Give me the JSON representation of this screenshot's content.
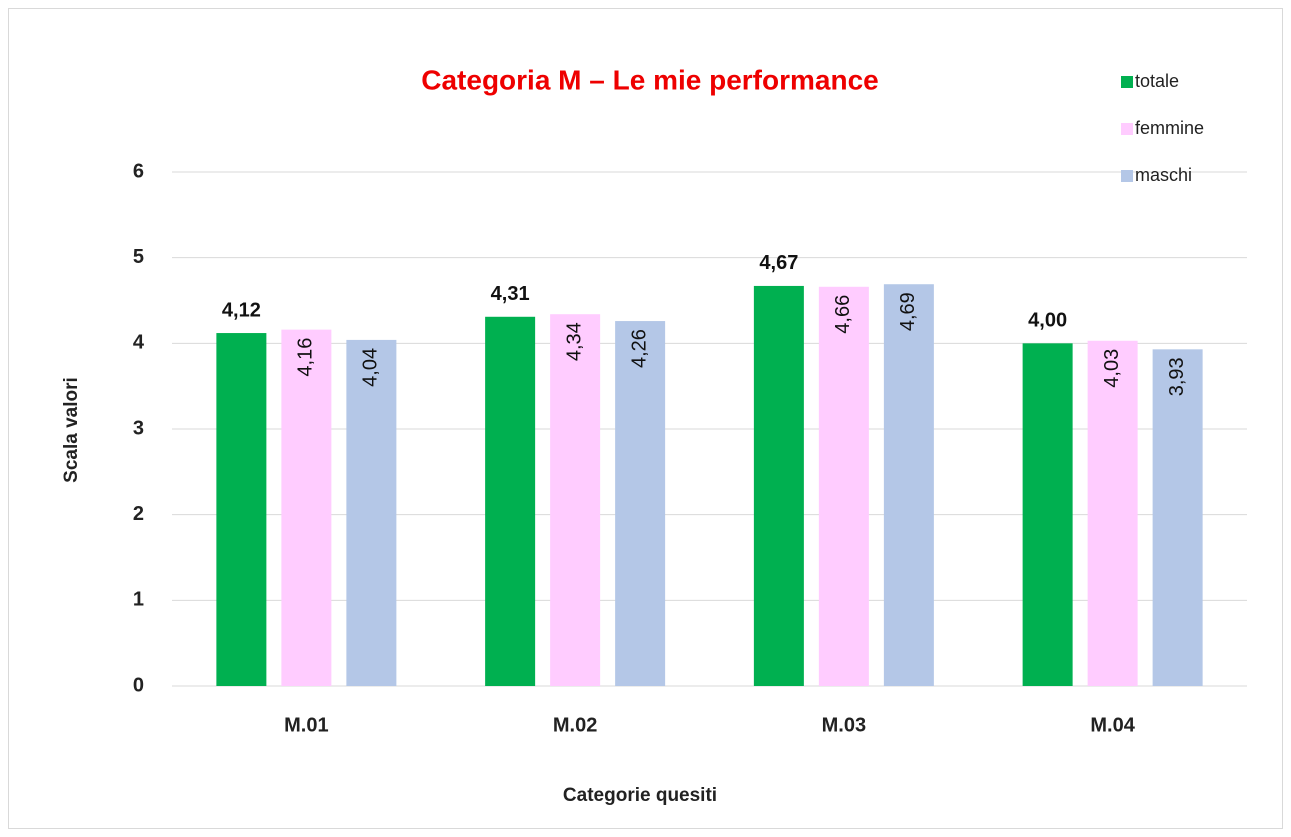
{
  "chart_data": {
    "type": "bar",
    "title": "Categoria M – Le mie performance",
    "x_label": "Categorie quesiti",
    "y_label": "Scala valori",
    "categories": [
      "M.01",
      "M.02",
      "M.03",
      "M.04"
    ],
    "series": [
      {
        "name": "totale",
        "color": "#00b050",
        "values": [
          4.12,
          4.31,
          4.67,
          4.0
        ],
        "value_labels": [
          "4,12",
          "4,31",
          "4,67",
          "4,00"
        ]
      },
      {
        "name": "femmine",
        "color": "#ffccff",
        "values": [
          4.16,
          4.34,
          4.66,
          4.03
        ],
        "value_labels": [
          "4,16",
          "4,34",
          "4,66",
          "4,03"
        ]
      },
      {
        "name": "maschi",
        "color": "#b4c7e7",
        "values": [
          4.04,
          4.26,
          4.69,
          3.93
        ],
        "value_labels": [
          "4,04",
          "4,26",
          "4,69",
          "3,93"
        ]
      }
    ],
    "ylim": [
      0,
      6
    ],
    "yticks": [
      0,
      1,
      2,
      3,
      4,
      5,
      6
    ],
    "grid": true,
    "legend": "top right"
  }
}
